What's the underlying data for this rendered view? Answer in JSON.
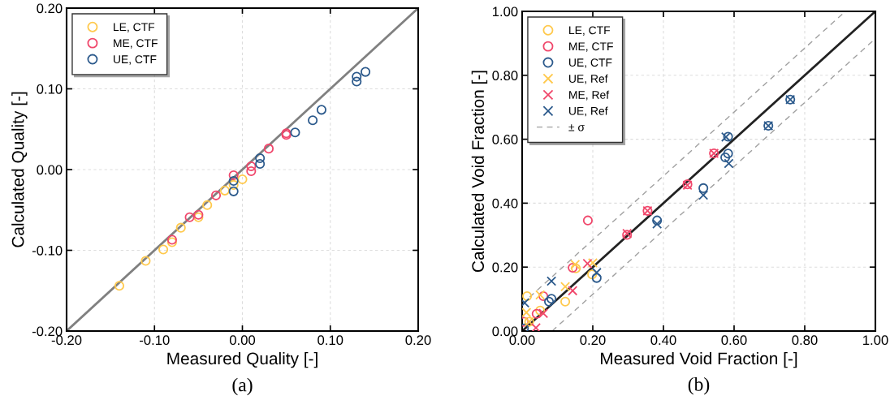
{
  "chart_data": [
    {
      "type": "scatter",
      "xlabel": "Measured Quality [-]",
      "ylabel": "Calculated Quality [-]",
      "annotations": [
        "(a)"
      ],
      "xlim": [
        -0.2,
        0.2
      ],
      "ylim": [
        -0.2,
        0.2
      ],
      "xticks": [
        {
          "value": -0.2,
          "label": "-0.20"
        },
        {
          "value": -0.1,
          "label": "-0.10"
        },
        {
          "value": 0,
          "label": "0.00"
        },
        {
          "value": 0.1,
          "label": "0.10"
        },
        {
          "value": 0.2,
          "label": "0.20"
        }
      ],
      "yticks": [
        {
          "value": -0.2,
          "label": "-0.20"
        },
        {
          "value": -0.1,
          "label": "-0.10"
        },
        {
          "value": 0,
          "label": "0.00"
        },
        {
          "value": 0.1,
          "label": "0.10"
        },
        {
          "value": 0.2,
          "label": "0.20"
        }
      ],
      "grid": true,
      "legend": "top left",
      "series": [
        {
          "name": "LE, CTF",
          "color": "#ffc94d",
          "marker": "circle",
          "x": [
            -0.14,
            -0.11,
            -0.09,
            -0.08,
            -0.07,
            -0.05,
            -0.04,
            -0.02,
            -0.01,
            0.0
          ],
          "values": [
            -0.144,
            -0.113,
            -0.099,
            -0.09,
            -0.072,
            -0.059,
            -0.044,
            -0.026,
            -0.019,
            -0.012
          ]
        },
        {
          "name": "ME, CTF",
          "color": "#f0476b",
          "marker": "circle",
          "x": [
            -0.08,
            -0.06,
            -0.05,
            -0.03,
            -0.01,
            0.01,
            0.01,
            0.03,
            0.05,
            0.05
          ],
          "values": [
            -0.087,
            -0.059,
            -0.056,
            -0.032,
            -0.007,
            -0.002,
            0.004,
            0.026,
            0.045,
            0.043
          ]
        },
        {
          "name": "UE, CTF",
          "color": "#2c5a8c",
          "marker": "circle",
          "x": [
            -0.01,
            -0.01,
            0.02,
            0.02,
            0.06,
            0.08,
            0.09,
            0.13,
            0.13,
            0.14
          ],
          "values": [
            -0.014,
            -0.027,
            0.014,
            0.007,
            0.046,
            0.061,
            0.074,
            0.109,
            0.115,
            0.121
          ]
        },
        {
          "type": "line",
          "color": "#808080",
          "marker": "none",
          "line_style": "solid",
          "x": [
            -0.2,
            0.2
          ],
          "values": [
            -0.2,
            0.2
          ]
        }
      ]
    },
    {
      "type": "scatter",
      "xlabel": "Measured Void Fraction [-]",
      "ylabel": "Calculated Void Fraction [-]",
      "annotations": [
        "(b)"
      ],
      "xlim": [
        0,
        1
      ],
      "ylim": [
        0,
        1
      ],
      "xticks": [
        {
          "value": 0,
          "label": "0.00"
        },
        {
          "value": 0.2,
          "label": "0.20"
        },
        {
          "value": 0.4,
          "label": "0.40"
        },
        {
          "value": 0.6,
          "label": "0.60"
        },
        {
          "value": 0.8,
          "label": "0.80"
        },
        {
          "value": 1,
          "label": "1.00"
        }
      ],
      "yticks": [
        {
          "value": 0,
          "label": "0.00"
        },
        {
          "value": 0.2,
          "label": "0.20"
        },
        {
          "value": 0.4,
          "label": "0.40"
        },
        {
          "value": 0.6,
          "label": "0.60"
        },
        {
          "value": 0.8,
          "label": "0.80"
        },
        {
          "value": 1,
          "label": "1.00"
        }
      ],
      "grid": true,
      "legend": "top left",
      "series": [
        {
          "name": "LE, CTF",
          "color": "#ffc94d",
          "marker": "circle",
          "x": [
            0.152,
            0.198,
            0.122,
            0.014,
            0.051,
            0.02
          ],
          "values": [
            0.196,
            0.177,
            0.092,
            0.109,
            0.064,
            0.029
          ]
        },
        {
          "name": "ME, CTF",
          "color": "#f0476b",
          "marker": "circle",
          "x": [
            0.186,
            0.297,
            0.355,
            0.468,
            0.543,
            0.143,
            0.06,
            0.041,
            0.005
          ],
          "values": [
            0.346,
            0.301,
            0.376,
            0.459,
            0.556,
            0.198,
            0.109,
            0.054,
            0.029
          ]
        },
        {
          "name": "UE, CTF",
          "color": "#2c5a8c",
          "marker": "circle",
          "x": [
            0.382,
            0.513,
            0.583,
            0.583,
            0.575,
            0.697,
            0.759,
            0.211,
            0.083,
            0.076,
            0.005
          ],
          "values": [
            0.346,
            0.447,
            0.608,
            0.555,
            0.543,
            0.642,
            0.724,
            0.166,
            0.101,
            0.092,
            0.008
          ]
        },
        {
          "name": "UE, Ref",
          "color": "#ffc94d",
          "marker": "cross",
          "x": [
            0.15,
            0.2,
            0.122,
            0.051,
            0.012,
            0.02
          ],
          "values": [
            0.208,
            0.213,
            0.139,
            0.113,
            0.058,
            0.029
          ]
        },
        {
          "name": "ME, Ref",
          "color": "#f0476b",
          "marker": "cross",
          "x": [
            0.297,
            0.355,
            0.468,
            0.543,
            0.185,
            0.143,
            0.06,
            0.039
          ],
          "values": [
            0.305,
            0.376,
            0.456,
            0.556,
            0.211,
            0.126,
            0.055,
            0.01
          ]
        },
        {
          "name": "UE, Ref",
          "color": "#2c5a8c",
          "marker": "cross",
          "x": [
            0.382,
            0.513,
            0.577,
            0.585,
            0.697,
            0.759,
            0.083,
            0.007,
            0.211
          ],
          "values": [
            0.335,
            0.425,
            0.607,
            0.524,
            0.642,
            0.724,
            0.156,
            0.088,
            0.183
          ]
        },
        {
          "type": "line",
          "color": "#222222",
          "marker": "none",
          "line_style": "solid",
          "x": [
            0,
            1
          ],
          "values": [
            0,
            1
          ]
        },
        {
          "name": "± σ",
          "type": "line",
          "color": "#a0a0a0",
          "marker": "none",
          "line_style": "dashed",
          "x": [
            0,
            0.915
          ],
          "values": [
            0.085,
            1
          ]
        },
        {
          "type": "line",
          "color": "#a0a0a0",
          "marker": "none",
          "line_style": "dashed",
          "x": [
            0.085,
            1
          ],
          "values": [
            0,
            0.915
          ]
        }
      ]
    }
  ]
}
